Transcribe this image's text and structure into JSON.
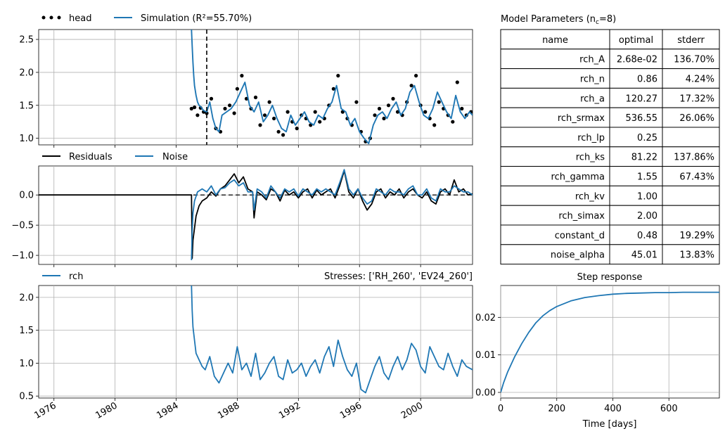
{
  "colors": {
    "obs": "#000000",
    "sim": "#1f77b4",
    "grid": "#b0b0b0"
  },
  "panels": {
    "head": {
      "legend": [
        {
          "key": "obs",
          "label": "head"
        },
        {
          "key": "sim",
          "label": "Simulation (R²=55.70%)"
        }
      ]
    },
    "residuals": {
      "legend": [
        {
          "key": "res",
          "label": "Residuals"
        },
        {
          "key": "noise",
          "label": "Noise"
        }
      ]
    },
    "rch": {
      "legend": [
        {
          "key": "rch",
          "label": "rch"
        }
      ],
      "stress_title": "Stresses: ['RH_260', 'EV24_260']"
    },
    "step": {
      "title": "Step response",
      "xlabel": "Time [days]"
    }
  },
  "table": {
    "title": "Model Parameters (nc=8)",
    "headers": [
      "name",
      "optimal",
      "stderr"
    ],
    "rows": [
      [
        "rch_A",
        "2.68e-02",
        "136.70%"
      ],
      [
        "rch_n",
        "0.86",
        "4.24%"
      ],
      [
        "rch_a",
        "120.27",
        "17.32%"
      ],
      [
        "rch_srmax",
        "536.55",
        "26.06%"
      ],
      [
        "rch_lp",
        "0.25",
        ""
      ],
      [
        "rch_ks",
        "81.22",
        "137.86%"
      ],
      [
        "rch_gamma",
        "1.55",
        "67.43%"
      ],
      [
        "rch_kv",
        "1.00",
        ""
      ],
      [
        "rch_simax",
        "2.00",
        ""
      ],
      [
        "constant_d",
        "0.48",
        "19.29%"
      ],
      [
        "noise_alpha",
        "45.01",
        "13.83%"
      ]
    ]
  },
  "chart_data": [
    {
      "type": "scatter+line",
      "panel": "head",
      "xlim": [
        1975,
        2003.4
      ],
      "ylim": [
        0.9,
        2.65
      ],
      "yticks": [
        1.0,
        1.5,
        2.0,
        2.5
      ],
      "ytick_labels": [
        "1.0",
        "1.5",
        "2.0",
        "2.5"
      ],
      "grid": true,
      "legend_position": "top-left",
      "calibration_start": 1986.0,
      "series": [
        {
          "name": "head",
          "style": "dots",
          "x": [
            1985.0,
            1985.2,
            1985.4,
            1985.6,
            1985.8,
            1986.0,
            1986.3,
            1986.6,
            1986.9,
            1987.2,
            1987.5,
            1987.8,
            1988.0,
            1988.3,
            1988.6,
            1988.9,
            1989.2,
            1989.5,
            1989.8,
            1990.1,
            1990.4,
            1990.7,
            1991.0,
            1991.3,
            1991.6,
            1991.9,
            1992.2,
            1992.5,
            1992.8,
            1993.1,
            1993.4,
            1993.7,
            1994.0,
            1994.3,
            1994.6,
            1994.9,
            1995.2,
            1995.5,
            1995.8,
            1996.1,
            1996.4,
            1996.7,
            1997.0,
            1997.3,
            1997.6,
            1997.9,
            1998.2,
            1998.5,
            1998.8,
            1999.1,
            1999.4,
            1999.7,
            2000.0,
            2000.3,
            2000.6,
            2000.9,
            2001.2,
            2001.5,
            2001.8,
            2002.1,
            2002.4,
            2002.7,
            2003.0,
            2003.3
          ],
          "y": [
            1.45,
            1.47,
            1.35,
            1.46,
            1.4,
            1.38,
            1.6,
            1.15,
            1.1,
            1.45,
            1.5,
            1.38,
            1.75,
            1.95,
            1.6,
            1.45,
            1.62,
            1.2,
            1.35,
            1.55,
            1.3,
            1.1,
            1.05,
            1.4,
            1.25,
            1.15,
            1.35,
            1.3,
            1.2,
            1.4,
            1.25,
            1.3,
            1.5,
            1.75,
            1.95,
            1.4,
            1.3,
            1.2,
            1.55,
            1.1,
            0.95,
            1.0,
            1.35,
            1.45,
            1.3,
            1.5,
            1.6,
            1.4,
            1.35,
            1.55,
            1.8,
            1.95,
            1.5,
            1.4,
            1.3,
            1.2,
            1.55,
            1.45,
            1.35,
            1.25,
            1.85,
            1.45,
            1.35,
            1.4
          ]
        },
        {
          "name": "Simulation",
          "style": "line",
          "x": [
            1985.0,
            1985.05,
            1985.1,
            1985.15,
            1985.2,
            1985.3,
            1985.4,
            1985.5,
            1985.6,
            1985.8,
            1986.0,
            1986.2,
            1986.4,
            1986.6,
            1986.8,
            1987.0,
            1987.3,
            1987.6,
            1987.9,
            1988.2,
            1988.5,
            1988.8,
            1989.1,
            1989.4,
            1989.7,
            1990.0,
            1990.3,
            1990.6,
            1990.9,
            1991.2,
            1991.5,
            1991.8,
            1992.1,
            1992.4,
            1992.7,
            1993.0,
            1993.3,
            1993.6,
            1993.9,
            1994.2,
            1994.5,
            1994.8,
            1995.1,
            1995.4,
            1995.7,
            1996.0,
            1996.3,
            1996.6,
            1996.9,
            1997.2,
            1997.5,
            1997.8,
            1998.1,
            1998.4,
            1998.7,
            1999.0,
            1999.3,
            1999.6,
            1999.9,
            2000.2,
            2000.5,
            2000.8,
            2001.1,
            2001.4,
            2001.7,
            2002.0,
            2002.3,
            2002.6,
            2002.9,
            2003.2,
            2003.4
          ],
          "y": [
            2.65,
            2.4,
            2.15,
            1.95,
            1.8,
            1.65,
            1.55,
            1.5,
            1.48,
            1.42,
            1.4,
            1.55,
            1.3,
            1.15,
            1.1,
            1.35,
            1.4,
            1.45,
            1.55,
            1.7,
            1.85,
            1.5,
            1.4,
            1.55,
            1.25,
            1.35,
            1.5,
            1.3,
            1.15,
            1.1,
            1.35,
            1.2,
            1.3,
            1.4,
            1.25,
            1.2,
            1.35,
            1.3,
            1.45,
            1.55,
            1.8,
            1.45,
            1.4,
            1.2,
            1.3,
            1.1,
            1.0,
            0.92,
            1.2,
            1.35,
            1.4,
            1.3,
            1.45,
            1.55,
            1.35,
            1.45,
            1.7,
            1.8,
            1.55,
            1.35,
            1.3,
            1.45,
            1.7,
            1.55,
            1.4,
            1.3,
            1.65,
            1.4,
            1.3,
            1.4,
            1.35
          ]
        }
      ]
    },
    {
      "type": "line",
      "panel": "residuals",
      "xlim": [
        1975,
        2003.4
      ],
      "ylim": [
        -1.15,
        0.48
      ],
      "yticks": [
        -1.0,
        -0.5,
        0.0
      ],
      "ytick_labels": [
        "−1.0",
        "−0.5",
        "0.0"
      ],
      "grid": true,
      "legend_position": "top-left",
      "series": [
        {
          "name": "Residuals",
          "x": [
            1975.0,
            1985.0,
            1985.05,
            1985.1,
            1985.2,
            1985.3,
            1985.5,
            1985.7,
            1986.0,
            1986.3,
            1986.6,
            1986.9,
            1987.2,
            1987.5,
            1987.8,
            1988.1,
            1988.4,
            1988.7,
            1989.0,
            1989.1,
            1989.3,
            1989.6,
            1989.9,
            1990.2,
            1990.5,
            1990.8,
            1991.1,
            1991.4,
            1991.7,
            1992.0,
            1992.3,
            1992.6,
            1992.9,
            1993.2,
            1993.5,
            1993.8,
            1994.1,
            1994.4,
            1994.7,
            1995.0,
            1995.3,
            1995.6,
            1995.9,
            1996.2,
            1996.5,
            1996.8,
            1997.1,
            1997.4,
            1997.7,
            1998.0,
            1998.3,
            1998.6,
            1998.9,
            1999.2,
            1999.5,
            1999.8,
            2000.1,
            2000.4,
            2000.7,
            2001.0,
            2001.3,
            2001.6,
            2001.9,
            2002.2,
            2002.5,
            2002.8,
            2003.1,
            2003.4
          ],
          "y": [
            0.0,
            0.0,
            -1.05,
            -0.75,
            -0.55,
            -0.35,
            -0.18,
            -0.1,
            -0.05,
            0.05,
            -0.02,
            0.1,
            0.15,
            0.25,
            0.35,
            0.2,
            0.3,
            0.1,
            0.05,
            -0.38,
            0.05,
            0.0,
            -0.08,
            0.1,
            0.05,
            -0.1,
            0.08,
            0.0,
            0.05,
            -0.05,
            0.05,
            0.1,
            -0.05,
            0.08,
            0.0,
            0.05,
            0.1,
            -0.05,
            0.15,
            0.4,
            0.05,
            -0.05,
            0.1,
            -0.1,
            -0.25,
            -0.15,
            0.05,
            0.1,
            -0.05,
            0.05,
            0.0,
            0.1,
            -0.05,
            0.05,
            0.1,
            0.0,
            -0.05,
            0.05,
            -0.1,
            -0.15,
            0.05,
            0.1,
            0.0,
            0.25,
            0.05,
            0.1,
            0.0,
            0.02
          ]
        },
        {
          "name": "Noise",
          "x": [
            1985.0,
            1985.05,
            1985.1,
            1985.2,
            1985.4,
            1985.7,
            1986.0,
            1986.3,
            1986.6,
            1986.9,
            1987.2,
            1987.5,
            1987.8,
            1988.1,
            1988.4,
            1988.7,
            1989.0,
            1989.1,
            1989.3,
            1989.6,
            1989.9,
            1990.2,
            1990.5,
            1990.8,
            1991.1,
            1991.4,
            1991.7,
            1992.0,
            1992.3,
            1992.6,
            1992.9,
            1993.2,
            1993.5,
            1993.8,
            1994.1,
            1994.4,
            1994.7,
            1995.0,
            1995.3,
            1995.6,
            1995.9,
            1996.2,
            1996.5,
            1996.8,
            1997.1,
            1997.4,
            1997.7,
            1998.0,
            1998.3,
            1998.6,
            1998.9,
            1999.2,
            1999.5,
            1999.8,
            2000.1,
            2000.4,
            2000.7,
            2001.0,
            2001.3,
            2001.6,
            2001.9,
            2002.2,
            2002.5,
            2002.8,
            2003.1,
            2003.4
          ],
          "y": [
            -1.08,
            -0.6,
            -0.3,
            -0.1,
            0.05,
            0.1,
            0.05,
            0.15,
            0.0,
            0.1,
            0.12,
            0.2,
            0.25,
            0.15,
            0.2,
            0.05,
            0.05,
            -0.25,
            0.1,
            0.05,
            -0.05,
            0.15,
            0.05,
            -0.05,
            0.1,
            0.05,
            0.1,
            -0.02,
            0.1,
            0.05,
            0.0,
            0.1,
            0.05,
            0.1,
            0.05,
            0.0,
            0.2,
            0.42,
            0.1,
            0.0,
            0.1,
            -0.05,
            -0.15,
            -0.1,
            0.1,
            0.05,
            0.0,
            0.1,
            0.05,
            0.05,
            0.0,
            0.1,
            0.15,
            0.0,
            0.0,
            0.1,
            -0.05,
            -0.1,
            0.1,
            0.05,
            0.05,
            0.15,
            0.1,
            0.05,
            0.05,
            0.0
          ]
        }
      ]
    },
    {
      "type": "line",
      "panel": "rch",
      "xlim": [
        1975,
        2003.4
      ],
      "ylim": [
        0.47,
        2.18
      ],
      "yticks": [
        0.5,
        1.0,
        1.5,
        2.0
      ],
      "ytick_labels": [
        "0.5",
        "1.0",
        "1.5",
        "2.0"
      ],
      "xticks": [
        1976,
        1980,
        1984,
        1988,
        1992,
        1996,
        2000
      ],
      "xtick_labels": [
        "1976",
        "1980",
        "1984",
        "1988",
        "1992",
        "1996",
        "2000"
      ],
      "grid": true,
      "legend_position": "top-left",
      "series": [
        {
          "name": "rch",
          "x": [
            1985.0,
            1985.05,
            1985.1,
            1985.2,
            1985.3,
            1985.5,
            1985.7,
            1985.9,
            1986.2,
            1986.5,
            1986.8,
            1987.1,
            1987.4,
            1987.7,
            1988.0,
            1988.3,
            1988.6,
            1988.9,
            1989.2,
            1989.5,
            1989.8,
            1990.1,
            1990.4,
            1990.7,
            1991.0,
            1991.3,
            1991.6,
            1991.9,
            1992.2,
            1992.5,
            1992.8,
            1993.1,
            1993.4,
            1993.7,
            1994.0,
            1994.3,
            1994.6,
            1994.9,
            1995.2,
            1995.5,
            1995.8,
            1996.1,
            1996.4,
            1996.7,
            1997.0,
            1997.3,
            1997.6,
            1997.9,
            1998.2,
            1998.5,
            1998.8,
            1999.1,
            1999.4,
            1999.7,
            2000.0,
            2000.3,
            2000.6,
            2000.9,
            2001.2,
            2001.5,
            2001.8,
            2002.1,
            2002.4,
            2002.7,
            2003.0,
            2003.4
          ],
          "y": [
            2.18,
            1.8,
            1.55,
            1.35,
            1.15,
            1.05,
            0.95,
            0.9,
            1.1,
            0.8,
            0.7,
            0.85,
            1.0,
            0.85,
            1.25,
            0.9,
            1.0,
            0.8,
            1.15,
            0.75,
            0.85,
            1.0,
            1.1,
            0.8,
            0.75,
            1.05,
            0.85,
            0.9,
            1.0,
            0.8,
            0.95,
            1.05,
            0.85,
            1.1,
            1.25,
            0.95,
            1.35,
            1.1,
            0.9,
            0.8,
            1.0,
            0.6,
            0.55,
            0.75,
            0.95,
            1.1,
            0.85,
            0.75,
            0.95,
            1.1,
            0.9,
            1.05,
            1.3,
            1.2,
            0.95,
            0.85,
            1.25,
            1.1,
            0.95,
            0.9,
            1.15,
            0.95,
            0.8,
            1.05,
            0.95,
            0.9
          ]
        }
      ]
    },
    {
      "type": "line",
      "panel": "step",
      "title": "Step response",
      "xlabel": "Time [days]",
      "xlim": [
        0,
        780
      ],
      "ylim": [
        -0.0015,
        0.0285
      ],
      "xticks": [
        0,
        200,
        400,
        600
      ],
      "xtick_labels": [
        "0",
        "200",
        "400",
        "600"
      ],
      "yticks": [
        0.0,
        0.01,
        0.02
      ],
      "ytick_labels": [
        "0.00",
        "0.01",
        "0.02"
      ],
      "grid": true,
      "series": [
        {
          "name": "Step response",
          "x": [
            0,
            10,
            25,
            50,
            75,
            100,
            125,
            150,
            175,
            200,
            250,
            300,
            350,
            400,
            450,
            500,
            550,
            600,
            650,
            700,
            780
          ],
          "y": [
            0.0,
            0.0025,
            0.0055,
            0.0095,
            0.013,
            0.016,
            0.0185,
            0.0204,
            0.0218,
            0.0229,
            0.0244,
            0.0253,
            0.0258,
            0.0262,
            0.0264,
            0.0265,
            0.0266,
            0.0266,
            0.0267,
            0.0267,
            0.0267
          ]
        }
      ]
    }
  ]
}
